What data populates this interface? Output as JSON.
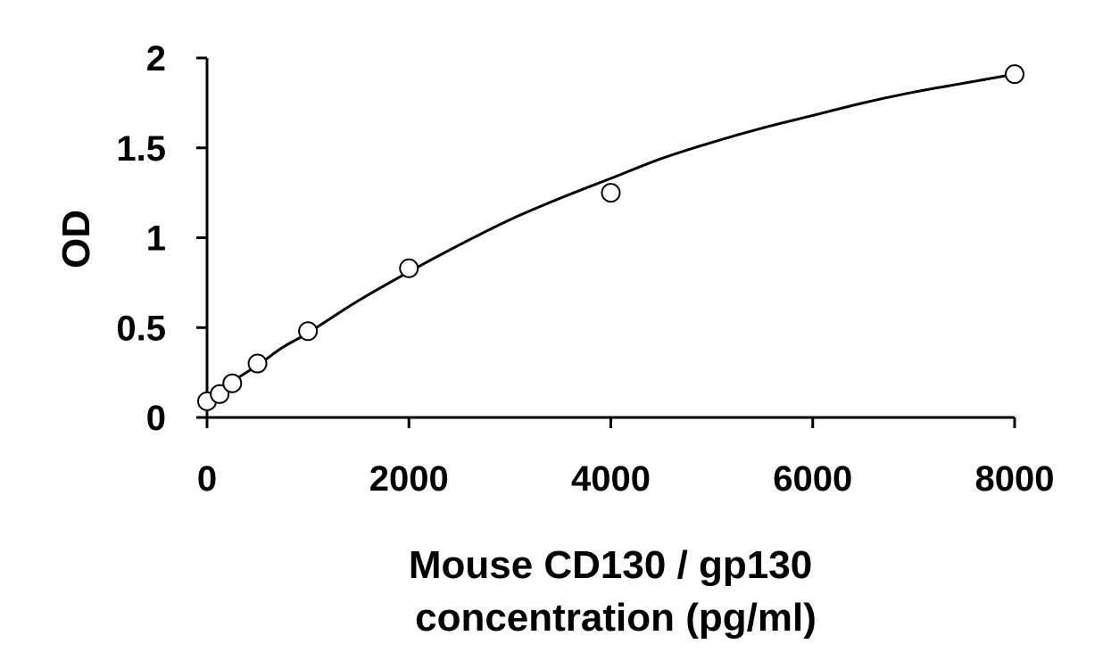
{
  "chart_data": {
    "type": "scatter",
    "title": "",
    "xlabel_lines": [
      "Mouse CD130 / gp130",
      "concentration (pg/ml)"
    ],
    "ylabel": "OD",
    "xlim": [
      0,
      8000
    ],
    "ylim": [
      0,
      2
    ],
    "x_ticks": [
      0,
      2000,
      4000,
      6000,
      8000
    ],
    "x_tick_labels": [
      "0",
      "2000",
      "4000",
      "6000",
      "8000"
    ],
    "y_ticks": [
      0,
      0.5,
      1,
      1.5,
      2
    ],
    "y_tick_labels": [
      "0",
      "0.5",
      "1",
      "1.5",
      "2"
    ],
    "grid": false,
    "legend": "none",
    "series": [
      {
        "marker": "open-circle",
        "x": [
          0,
          125,
          250,
          500,
          1000,
          2000,
          4000,
          8000
        ],
        "y": [
          0.09,
          0.13,
          0.19,
          0.3,
          0.48,
          0.83,
          1.25,
          1.91
        ]
      }
    ],
    "fit_curve": {
      "style": "solid-line",
      "x": [
        0,
        250,
        500,
        750,
        1000,
        1500,
        2000,
        2500,
        3000,
        3500,
        4000,
        4500,
        5000,
        5500,
        6000,
        6500,
        7000,
        7500,
        8000
      ],
      "y": [
        0.1,
        0.2,
        0.29,
        0.39,
        0.47,
        0.65,
        0.81,
        0.96,
        1.1,
        1.22,
        1.33,
        1.44,
        1.53,
        1.61,
        1.68,
        1.75,
        1.81,
        1.86,
        1.91
      ]
    }
  }
}
